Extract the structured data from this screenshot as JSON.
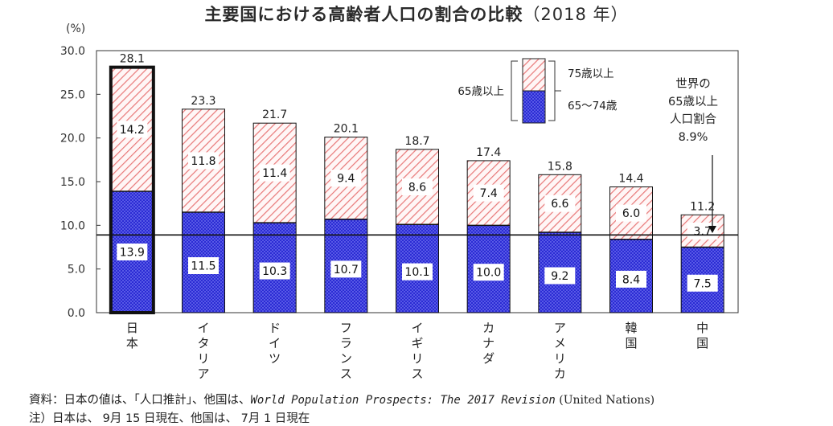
{
  "title": "主要国における高齢者人口の割合の比較",
  "title_year": "（2018 年）",
  "chart_data": {
    "type": "bar",
    "stacked": true,
    "ylabel": "(%)",
    "ylim": [
      0,
      30
    ],
    "yticks": [
      "0.0",
      "5.0",
      "10.0",
      "15.0",
      "20.0",
      "25.0",
      "30.0"
    ],
    "categories": [
      "日本",
      "イタリア",
      "ドイツ",
      "フランス",
      "イギリス",
      "カナダ",
      "アメリカ",
      "韓国",
      "中国"
    ],
    "series": [
      {
        "name": "65～74歳",
        "color": "#2d2dd6",
        "values": [
          13.9,
          11.5,
          10.3,
          10.7,
          10.1,
          10.0,
          9.2,
          8.4,
          7.5
        ]
      },
      {
        "name": "75歳以上",
        "color": "#e88080",
        "values": [
          14.2,
          11.8,
          11.4,
          9.4,
          8.6,
          7.4,
          6.6,
          6.0,
          3.7
        ]
      }
    ],
    "totals": [
      28.1,
      23.3,
      21.7,
      20.1,
      18.7,
      17.4,
      15.8,
      14.4,
      11.2
    ],
    "lower_labels": [
      "13.9",
      "11.5",
      "10.3",
      "10.7",
      "10.1",
      "10.0",
      "9.2",
      "8.4",
      "7.5"
    ],
    "upper_labels": [
      "14.2",
      "11.8",
      "11.4",
      "9.4",
      "8.6",
      "7.4",
      "6.6",
      "6.0",
      "3.7"
    ],
    "total_labels": [
      "28.1",
      "23.3",
      "21.7",
      "20.1",
      "18.7",
      "17.4",
      "15.8",
      "14.4",
      "11.2"
    ],
    "highlight_category": "日本",
    "reference_line": {
      "value": 8.9,
      "label_lines": [
        "世界の",
        "65歳以上",
        "人口割合",
        "8.9%"
      ]
    },
    "legend": {
      "group_label": "65歳以上",
      "items": [
        "75歳以上",
        "65～74歳"
      ],
      "position": "top-right"
    },
    "grid": false
  },
  "notes": {
    "source_prefix": "資料：日本の値は、「人口推計」、他国は、",
    "source_title": "World Population Prospects: The 2017 Revision",
    "source_org": " (United Nations)",
    "note_line": "注）日本は、 9月 15 日現在、他国は、 7月 1 日現在"
  }
}
